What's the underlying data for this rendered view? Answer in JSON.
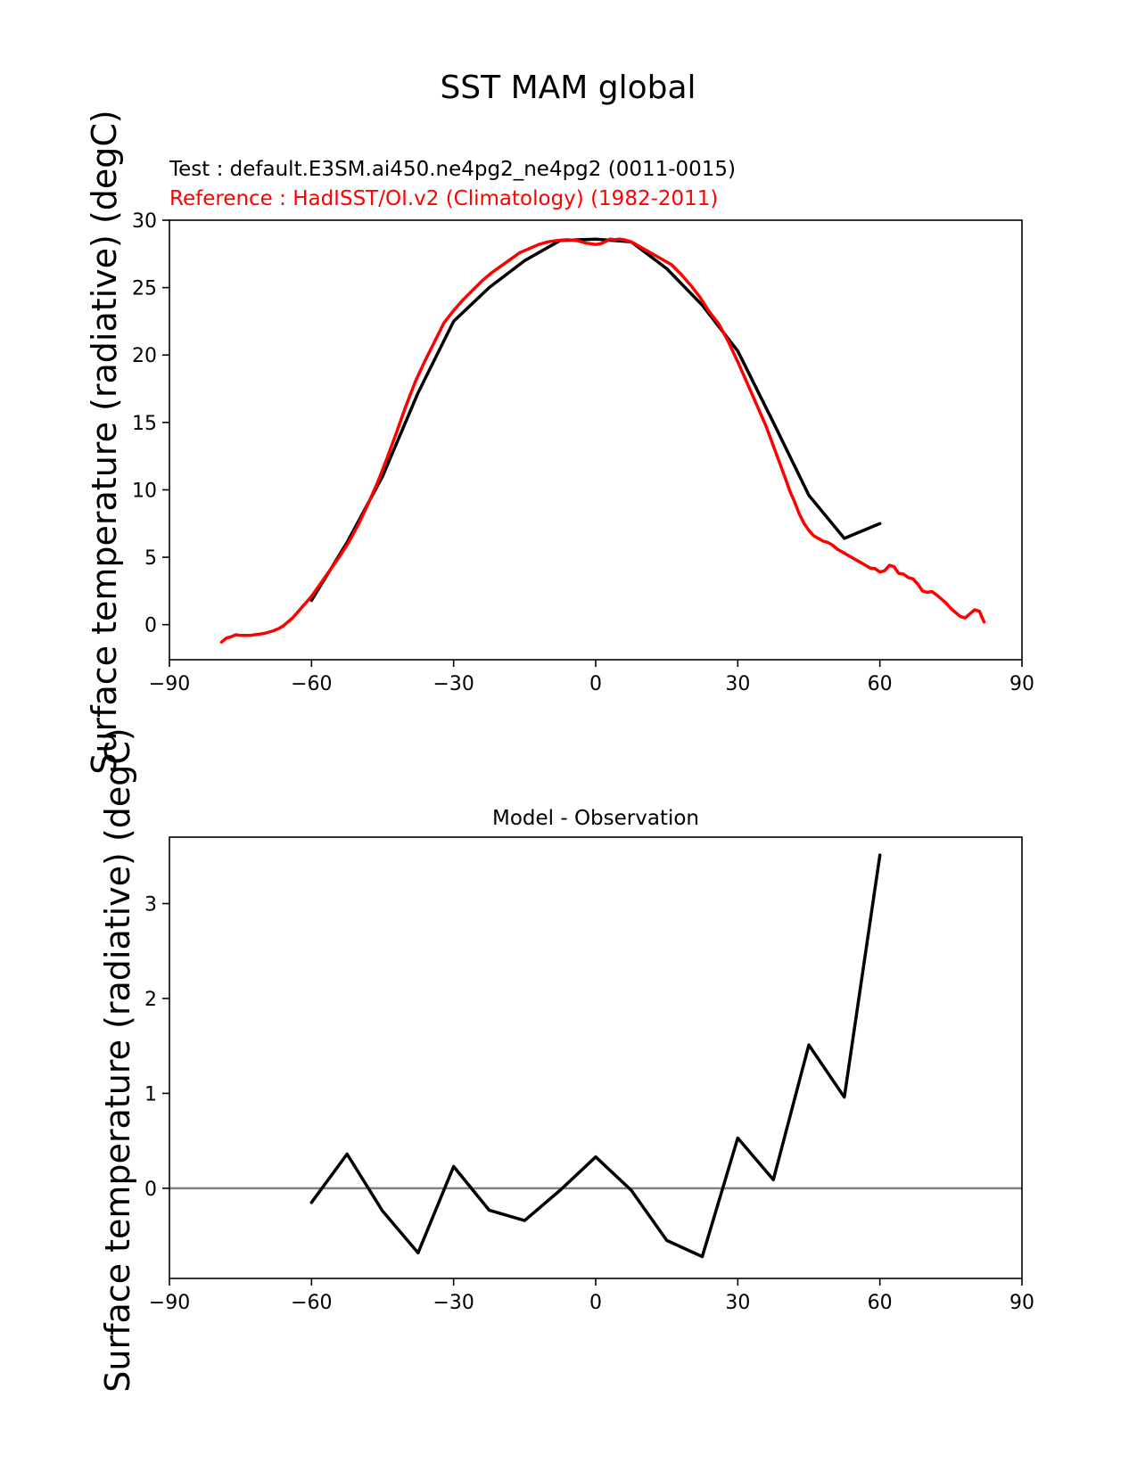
{
  "figure": {
    "suptitle": "SST MAM global"
  },
  "chart_data": [
    {
      "type": "line",
      "subtitle_test": "Test : default.E3SM.ai450.ne4pg2_ne4pg2 (0011-0015)",
      "subtitle_ref": "Reference : HadISST/OI.v2 (Climatology) (1982-2011)",
      "xlabel": "",
      "ylabel": "Surface temperature (radiative) (degC)",
      "xlim": [
        -90,
        90
      ],
      "ylim": [
        -2.6,
        30
      ],
      "xticks": [
        -90,
        -60,
        -30,
        0,
        30,
        60,
        90
      ],
      "yticks": [
        0,
        5,
        10,
        15,
        20,
        25,
        30
      ],
      "grid": false,
      "series": [
        {
          "name": "Test",
          "color": "#000000",
          "x": [
            -60,
            -52.5,
            -45,
            -37.5,
            -30,
            -22.5,
            -15,
            -7.5,
            0,
            7.5,
            15,
            22.5,
            30,
            37.5,
            45,
            52.5,
            60
          ],
          "y": [
            1.8,
            6.1,
            11.0,
            17.2,
            22.5,
            25.0,
            27.0,
            28.5,
            28.6,
            28.4,
            26.4,
            23.7,
            20.3,
            15.0,
            9.6,
            6.4,
            7.5
          ]
        },
        {
          "name": "Reference",
          "color": "#ff0000",
          "x": [
            -79,
            -78,
            -77,
            -76,
            -75,
            -74,
            -73,
            -72,
            -71,
            -70,
            -69,
            -68,
            -67,
            -66,
            -65,
            -64,
            -63,
            -62,
            -61,
            -60,
            -58,
            -56,
            -54,
            -52,
            -50,
            -48,
            -46,
            -44,
            -42,
            -40,
            -38,
            -36,
            -34,
            -32,
            -30,
            -28,
            -26,
            -24,
            -22,
            -20,
            -18,
            -16,
            -14,
            -12,
            -10,
            -8,
            -6,
            -4,
            -2,
            0,
            1,
            2,
            3,
            4,
            5,
            6,
            7,
            8,
            10,
            12,
            14,
            16,
            18,
            20,
            22,
            24,
            26,
            28,
            30,
            32,
            34,
            36,
            38,
            40,
            41,
            42,
            43,
            44,
            45,
            46,
            47,
            48,
            49,
            50,
            51,
            52,
            53,
            54,
            55,
            56,
            57,
            58,
            59,
            60,
            61,
            62,
            63,
            64,
            65,
            66,
            67,
            68,
            69,
            70,
            71,
            72,
            73,
            74,
            75,
            76,
            77,
            78,
            79,
            80,
            81,
            82
          ],
          "y": [
            -1.3,
            -1.0,
            -0.9,
            -0.75,
            -0.8,
            -0.8,
            -0.8,
            -0.75,
            -0.7,
            -0.65,
            -0.55,
            -0.45,
            -0.3,
            -0.1,
            0.2,
            0.5,
            0.9,
            1.3,
            1.7,
            2.1,
            3.1,
            4.1,
            5.1,
            6.2,
            7.5,
            9.0,
            10.6,
            12.4,
            14.3,
            16.3,
            18.1,
            19.6,
            21.0,
            22.4,
            23.3,
            24.1,
            24.8,
            25.5,
            26.1,
            26.6,
            27.1,
            27.6,
            27.9,
            28.2,
            28.4,
            28.5,
            28.55,
            28.5,
            28.3,
            28.2,
            28.25,
            28.4,
            28.6,
            28.55,
            28.6,
            28.55,
            28.45,
            28.3,
            27.9,
            27.5,
            27.1,
            26.7,
            26.0,
            25.2,
            24.3,
            23.2,
            22.3,
            21.0,
            19.5,
            17.9,
            16.3,
            14.7,
            12.8,
            10.9,
            9.9,
            9.1,
            8.2,
            7.5,
            7.0,
            6.6,
            6.4,
            6.2,
            6.1,
            5.9,
            5.6,
            5.4,
            5.2,
            5.0,
            4.8,
            4.6,
            4.4,
            4.2,
            4.15,
            3.9,
            4.0,
            4.4,
            4.3,
            3.8,
            3.75,
            3.5,
            3.4,
            3.0,
            2.5,
            2.4,
            2.45,
            2.2,
            1.9,
            1.6,
            1.2,
            0.9,
            0.6,
            0.5,
            0.8,
            1.1,
            1.0,
            0.2
          ]
        }
      ]
    },
    {
      "type": "line",
      "title": "Model - Observation",
      "xlabel": "",
      "ylabel": "Surface temperature (radiative) (degC)",
      "xlim": [
        -90,
        90
      ],
      "ylim": [
        -0.95,
        3.7
      ],
      "xticks": [
        -90,
        -60,
        -30,
        0,
        30,
        60,
        90
      ],
      "yticks": [
        0,
        1,
        2,
        3
      ],
      "grid": false,
      "zero_line_color": "#808080",
      "series": [
        {
          "color": "#000000",
          "x": [
            -60,
            -52.5,
            -45,
            -37.5,
            -30,
            -22.5,
            -15,
            -7.5,
            0,
            7.5,
            15,
            22.5,
            30,
            37.5,
            45,
            52.5,
            60
          ],
          "y": [
            -0.15,
            0.36,
            -0.24,
            -0.68,
            0.23,
            -0.23,
            -0.34,
            -0.02,
            0.33,
            -0.02,
            -0.55,
            -0.72,
            0.53,
            0.09,
            1.51,
            0.96,
            3.51
          ]
        }
      ]
    }
  ]
}
